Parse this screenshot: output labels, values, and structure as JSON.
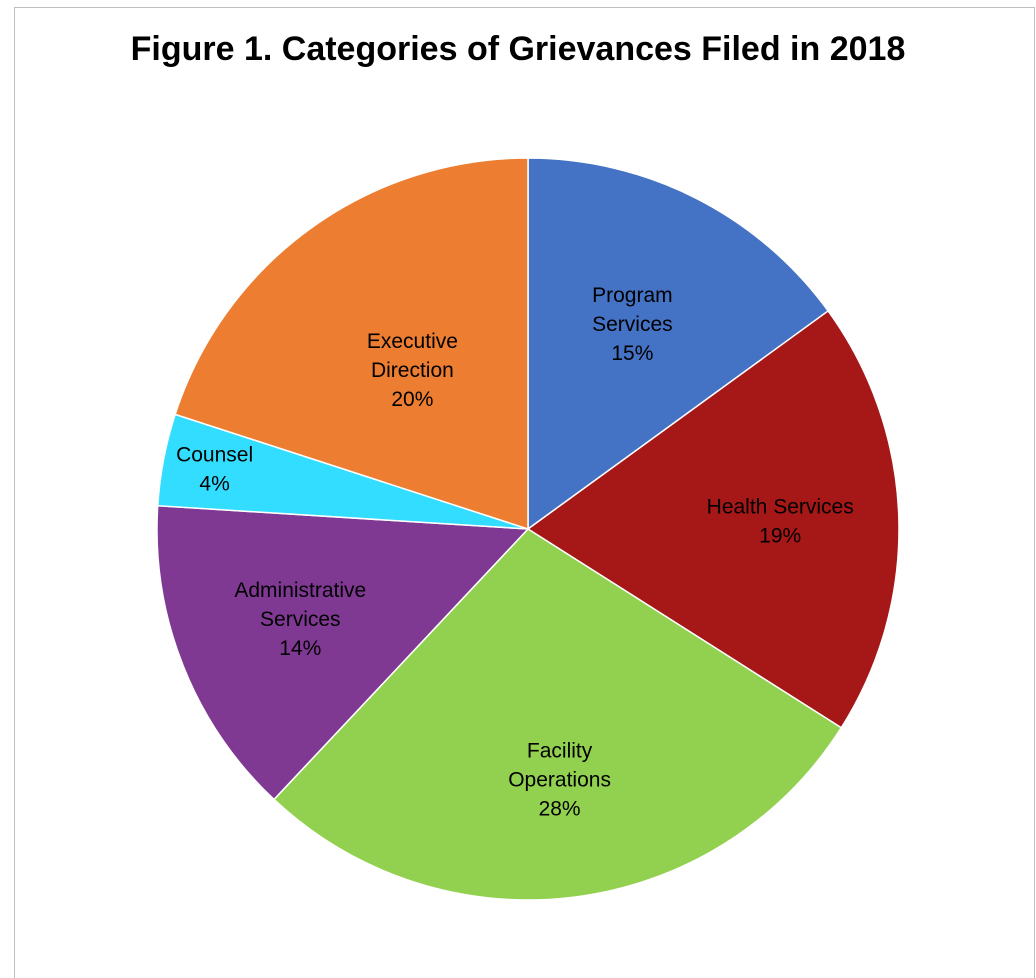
{
  "chart_data": {
    "type": "pie",
    "title": "Figure 1. Categories of Grievances Filed in 2018",
    "slices": [
      {
        "label": [
          "Program",
          "Services"
        ],
        "name": "Program Services",
        "value": 15,
        "pct_label": "15%",
        "color": "#4472C4"
      },
      {
        "label": [
          "Health Services"
        ],
        "name": "Health Services",
        "value": 19,
        "pct_label": "19%",
        "color": "#A61717"
      },
      {
        "label": [
          "Facility",
          "Operations"
        ],
        "name": "Facility Operations",
        "value": 28,
        "pct_label": "28%",
        "color": "#92D050"
      },
      {
        "label": [
          "Administrative",
          "Services"
        ],
        "name": "Administrative Services",
        "value": 14,
        "pct_label": "14%",
        "color": "#7F3993"
      },
      {
        "label": [
          "Counsel"
        ],
        "name": "Counsel",
        "value": 4,
        "pct_label": "4%",
        "color": "#33DDFF"
      },
      {
        "label": [
          "Executive",
          "Direction"
        ],
        "name": "Executive Direction",
        "value": 20,
        "pct_label": "20%",
        "color": "#ED7D31"
      }
    ],
    "start": "12 o'clock",
    "direction": "clockwise",
    "legend": "none"
  }
}
